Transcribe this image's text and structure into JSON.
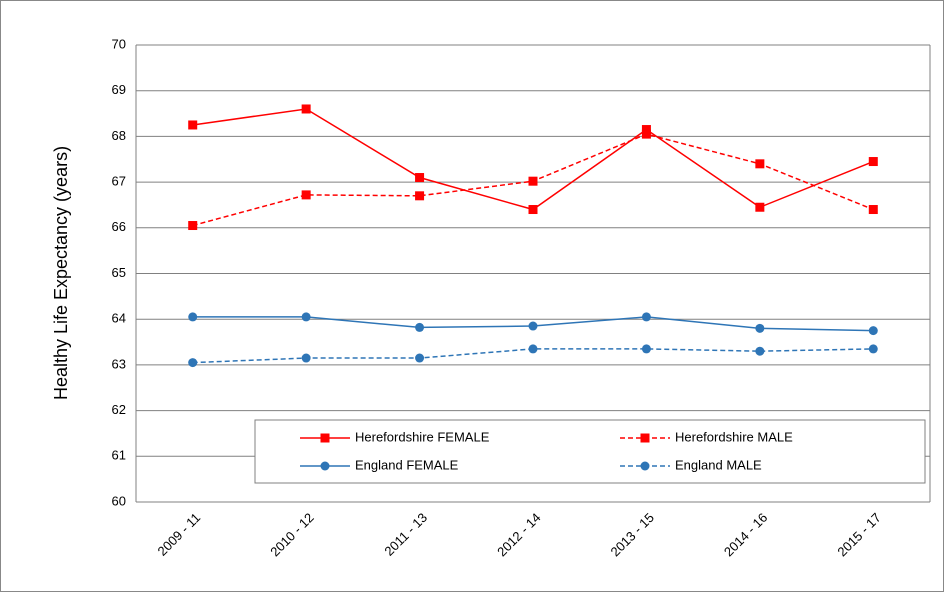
{
  "chart_data": {
    "type": "line",
    "y_label": "Healthy Life Expectancy (years)",
    "categories": [
      "2009 - 11",
      "2010 - 12",
      "2011 - 13",
      "2012 - 14",
      "2013 - 15",
      "2014 - 16",
      "2015 - 17"
    ],
    "ylim": [
      60,
      70
    ],
    "yticks": [
      60,
      61,
      62,
      63,
      64,
      65,
      66,
      67,
      68,
      69,
      70
    ],
    "grid": true,
    "legend": "bottom-right",
    "series": [
      {
        "name": "Herefordshire FEMALE",
        "color": "#ff0000",
        "dash": false,
        "marker": "square",
        "values": [
          68.25,
          68.6,
          67.1,
          66.4,
          68.15,
          66.45,
          67.45
        ]
      },
      {
        "name": "Herefordshire MALE",
        "color": "#ff0000",
        "dash": true,
        "marker": "square",
        "values": [
          66.05,
          66.72,
          66.7,
          67.02,
          68.05,
          67.4,
          66.4
        ]
      },
      {
        "name": "England FEMALE",
        "color": "#2e75b6",
        "dash": false,
        "marker": "circle",
        "values": [
          64.05,
          64.05,
          63.82,
          63.85,
          64.05,
          63.8,
          63.75
        ]
      },
      {
        "name": "England MALE",
        "color": "#2e75b6",
        "dash": true,
        "marker": "circle",
        "values": [
          63.05,
          63.15,
          63.15,
          63.35,
          63.35,
          63.3,
          63.35
        ]
      }
    ]
  }
}
